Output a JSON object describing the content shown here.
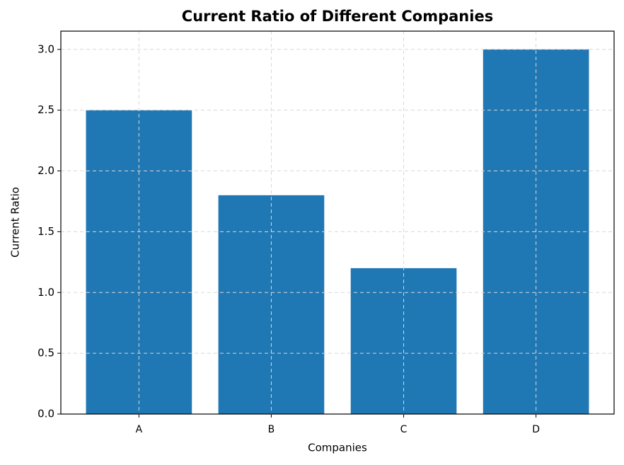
{
  "chart_data": {
    "type": "bar",
    "title": "Current Ratio of Different Companies",
    "x_label": "Companies",
    "y_label": "Current Ratio",
    "categories": [
      "A",
      "B",
      "C",
      "D"
    ],
    "values": [
      2.5,
      1.8,
      1.2,
      3.0
    ],
    "color": "#1f77b4",
    "ylim": [
      0,
      3.15
    ],
    "yticks": [
      {
        "value": 0,
        "label": "0.0"
      },
      {
        "value": 0.5,
        "label": "0.5"
      },
      {
        "value": 1,
        "label": "1.0"
      },
      {
        "value": 1.5,
        "label": "1.5"
      },
      {
        "value": 2,
        "label": "2.0"
      },
      {
        "value": 2.5,
        "label": "2.5"
      },
      {
        "value": 3,
        "label": "3.0"
      }
    ],
    "grid": true
  }
}
